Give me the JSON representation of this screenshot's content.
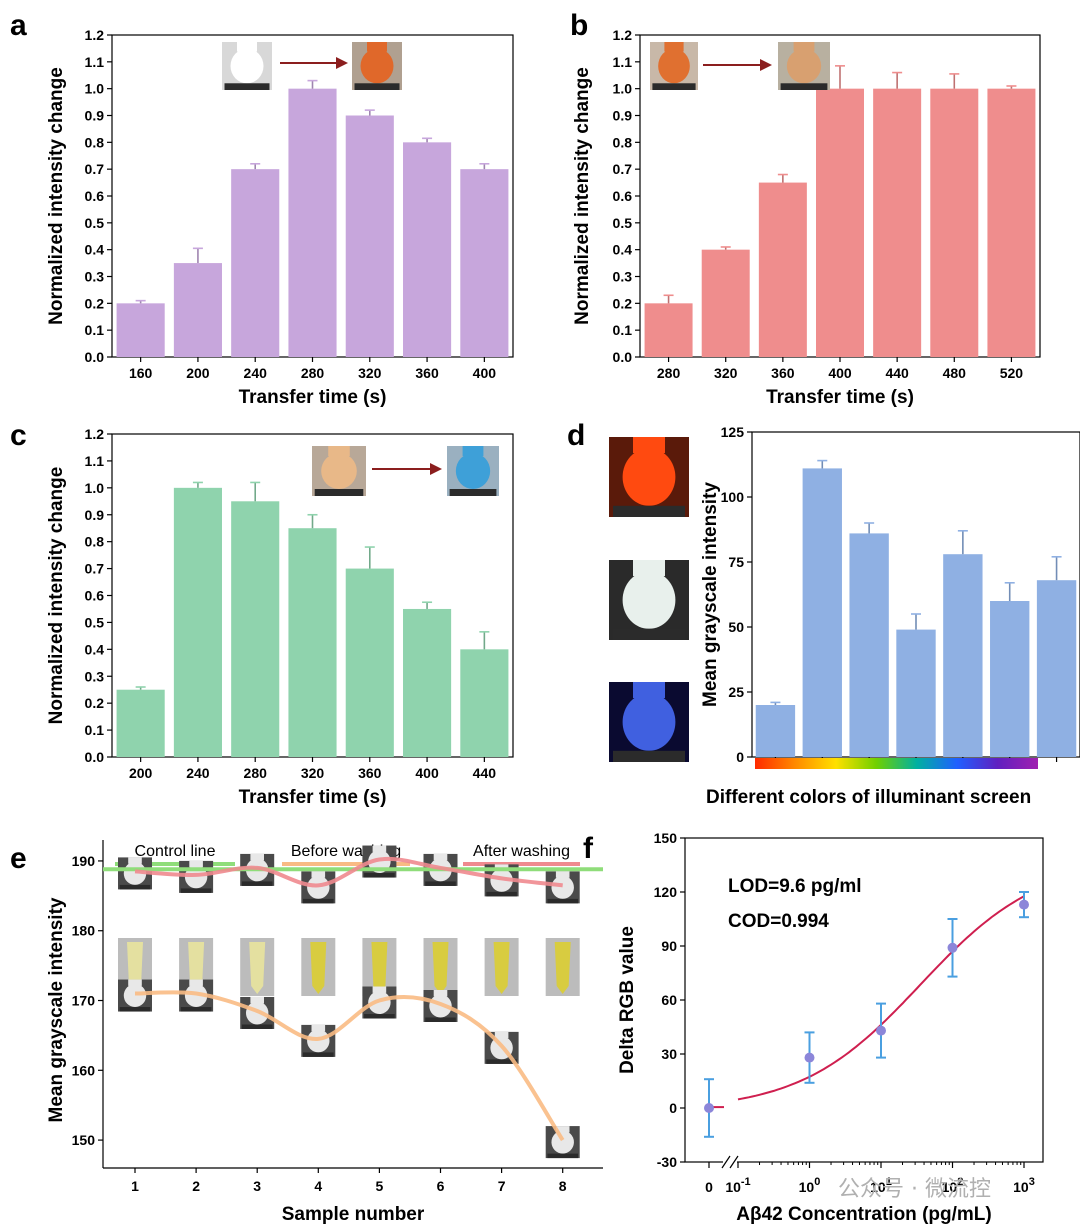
{
  "panels": {
    "a": "a",
    "b": "b",
    "c": "c",
    "d": "d",
    "e": "e",
    "f": "f"
  },
  "watermark": "公众号 · 微流控",
  "colors": {
    "a_bar": "#c7a6dc",
    "b_bar": "#ef8d8d",
    "c_bar": "#8fd3ad",
    "d_bar": "#8fb0e3",
    "e_control": "#8fdd7a",
    "e_before": "#f9bb84",
    "e_after": "#ef8a8f",
    "f_curve": "#cf1f4f",
    "f_err": "#4a9fe0",
    "f_point": "#8c86d9",
    "spectrum": [
      "#ff2a00",
      "#ff8a00",
      "#ffe000",
      "#70d000",
      "#00b0a0",
      "#2060ff",
      "#6020c0",
      "#a020b0"
    ]
  },
  "icons": {
    "a": [
      "white-chamber-icon",
      "orange-chamber-icon"
    ],
    "b": [
      "orange-chamber-icon",
      "beige-chamber-icon"
    ],
    "c": [
      "beige-chamber-icon",
      "blue-chamber-icon"
    ],
    "d": [
      "red-illuminant-photo",
      "white-illuminant-photo",
      "blue-illuminant-photo"
    ],
    "e": [
      "chamber-photo",
      "tube-photo",
      "chamber-photo"
    ]
  },
  "chart_data": [
    {
      "id": "a",
      "type": "bar",
      "xlabel": "Transfer time (s)",
      "ylabel": "Normalized intensity change",
      "categories": [
        "160",
        "200",
        "240",
        "280",
        "320",
        "360",
        "400"
      ],
      "values": [
        0.2,
        0.35,
        0.7,
        1.0,
        0.9,
        0.8,
        0.7
      ],
      "errors": [
        0.01,
        0.055,
        0.02,
        0.03,
        0.02,
        0.015,
        0.02
      ],
      "ylim": [
        0,
        1.2
      ],
      "yticks": [
        "0.0",
        "0.1",
        "0.2",
        "0.3",
        "0.4",
        "0.5",
        "0.6",
        "0.7",
        "0.8",
        "0.9",
        "1.0",
        "1.1",
        "1.2"
      ]
    },
    {
      "id": "b",
      "type": "bar",
      "xlabel": "Transfer time (s)",
      "ylabel": "Normalized intensity change",
      "categories": [
        "280",
        "320",
        "360",
        "400",
        "440",
        "480",
        "520"
      ],
      "values": [
        0.2,
        0.4,
        0.65,
        1.0,
        1.0,
        1.0,
        1.0
      ],
      "errors": [
        0.03,
        0.01,
        0.03,
        0.085,
        0.06,
        0.055,
        0.01
      ],
      "ylim": [
        0,
        1.2
      ],
      "yticks": [
        "0.0",
        "0.1",
        "0.2",
        "0.3",
        "0.4",
        "0.5",
        "0.6",
        "0.7",
        "0.8",
        "0.9",
        "1.0",
        "1.1",
        "1.2"
      ]
    },
    {
      "id": "c",
      "type": "bar",
      "xlabel": "Transfer time (s)",
      "ylabel": "Normalized intensity change",
      "categories": [
        "200",
        "240",
        "280",
        "320",
        "360",
        "400",
        "440"
      ],
      "values": [
        0.25,
        1.0,
        0.95,
        0.85,
        0.7,
        0.55,
        0.4
      ],
      "errors": [
        0.01,
        0.02,
        0.07,
        0.05,
        0.08,
        0.025,
        0.065
      ],
      "ylim": [
        0,
        1.2
      ],
      "yticks": [
        "0.0",
        "0.1",
        "0.2",
        "0.3",
        "0.4",
        "0.5",
        "0.6",
        "0.7",
        "0.8",
        "0.9",
        "1.0",
        "1.1",
        "1.2"
      ]
    },
    {
      "id": "d",
      "type": "bar",
      "xlabel": "Different colors of illuminant screen",
      "ylabel": "Mean grayscale intensity",
      "categories": [
        "",
        "",
        "",
        "",
        "",
        "",
        ""
      ],
      "values": [
        20,
        111,
        86,
        49,
        78,
        60,
        68
      ],
      "errors": [
        1,
        3,
        4,
        6,
        9,
        7,
        9
      ],
      "ylim": [
        0,
        125
      ],
      "yticks": [
        "0",
        "25",
        "50",
        "75",
        "100",
        "125"
      ]
    },
    {
      "id": "e",
      "type": "line",
      "xlabel": "Sample number",
      "ylabel": "Mean grayscale intensity",
      "x": [
        1,
        2,
        3,
        4,
        5,
        6,
        7,
        8
      ],
      "xticks": [
        "1",
        "2",
        "3",
        "4",
        "5",
        "6",
        "7",
        "8"
      ],
      "ylim": [
        146,
        193
      ],
      "yticks": [
        "150",
        "160",
        "170",
        "180",
        "190"
      ],
      "legend": [
        "Control line",
        "Before washing",
        "After washing"
      ],
      "series": [
        {
          "name": "Control line",
          "values": [
            188.8,
            188.8,
            188.8,
            188.8,
            188.8,
            188.8,
            188.8,
            188.8
          ]
        },
        {
          "name": "Before washing",
          "values": [
            171,
            171,
            168.5,
            164.5,
            170,
            169.5,
            163.5,
            150
          ]
        },
        {
          "name": "After washing",
          "values": [
            188.5,
            188,
            189,
            186.5,
            190.2,
            189,
            187.5,
            186.5
          ]
        }
      ]
    },
    {
      "id": "f",
      "type": "scatter",
      "xlabel": "Aβ42 Concentration (pg/mL)",
      "ylabel": "Delta RGB value",
      "x": [
        0,
        1,
        10,
        100,
        1000
      ],
      "y": [
        0,
        28,
        43,
        89,
        113
      ],
      "errors": [
        16,
        14,
        15,
        16,
        7
      ],
      "ylim": [
        -30,
        150
      ],
      "yticks": [
        "-30",
        "0",
        "30",
        "60",
        "90",
        "120",
        "150"
      ],
      "xscale": "log",
      "xticks": [
        {
          "base": "0",
          "exp": ""
        },
        {
          "base": "10",
          "exp": "-1"
        },
        {
          "base": "10",
          "exp": "0"
        },
        {
          "base": "10",
          "exp": "1"
        },
        {
          "base": "10",
          "exp": "2"
        },
        {
          "base": "10",
          "exp": "3"
        }
      ],
      "annotations": [
        "LOD=9.6 pg/ml",
        "COD=0.994"
      ],
      "fit": {
        "type": "sigmoid",
        "x_start": 0.1,
        "x_end": 1000,
        "y_zero_marker": 0.5
      }
    }
  ]
}
